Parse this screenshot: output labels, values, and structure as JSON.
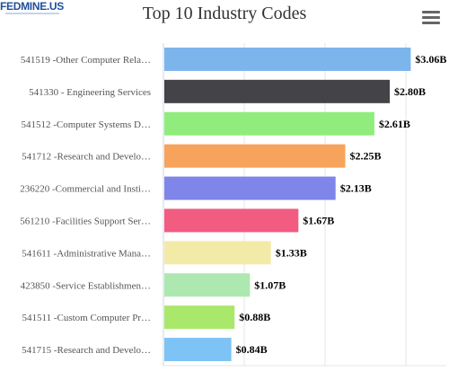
{
  "logo": {
    "text": "FEDMINE.US"
  },
  "menu": {
    "icon": "hamburger-menu-icon"
  },
  "chart_data": {
    "type": "bar",
    "orientation": "horizontal",
    "title": "Top 10 Industry Codes",
    "xlabel": "",
    "ylabel": "",
    "xlim": [
      0,
      3.5
    ],
    "grid": true,
    "legend": "none",
    "categories": [
      "541519 -Other Computer Rela…",
      "541330 - Engineering Services",
      "541512 -Computer Systems D…",
      "541712 -Research and Develo…",
      "236220 -Commercial and Insti…",
      "561210 -Facilities Support Ser…",
      "541611 -Administrative Mana…",
      "423850 -Service Establishmen…",
      "541511 -Custom Computer Pr…",
      "541715 -Research and Develo…"
    ],
    "values": [
      3.06,
      2.8,
      2.61,
      2.25,
      2.13,
      1.67,
      1.33,
      1.07,
      0.88,
      0.84
    ],
    "value_labels": [
      "$3.06B",
      "$2.80B",
      "$2.61B",
      "$2.25B",
      "$2.13B",
      "$1.67B",
      "$1.33B",
      "$1.07B",
      "$0.88B",
      "$0.84B"
    ],
    "colors": [
      "#7cb5ec",
      "#434348",
      "#90ed7d",
      "#f7a35c",
      "#8085e9",
      "#f15c80",
      "#f3eaa8",
      "#ade8b0",
      "#a9e86a",
      "#7dc3f5"
    ]
  }
}
